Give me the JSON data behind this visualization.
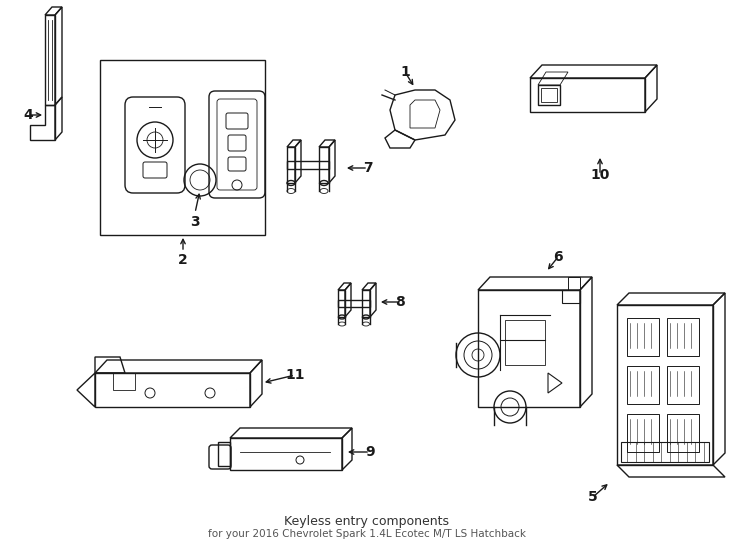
{
  "title": "Keyless entry components",
  "subtitle": "for your 2016 Chevrolet Spark 1.4L Ecotec M/T LS Hatchback",
  "background_color": "#ffffff",
  "line_color": "#1a1a1a",
  "figsize": [
    7.34,
    5.4
  ],
  "dpi": 100
}
